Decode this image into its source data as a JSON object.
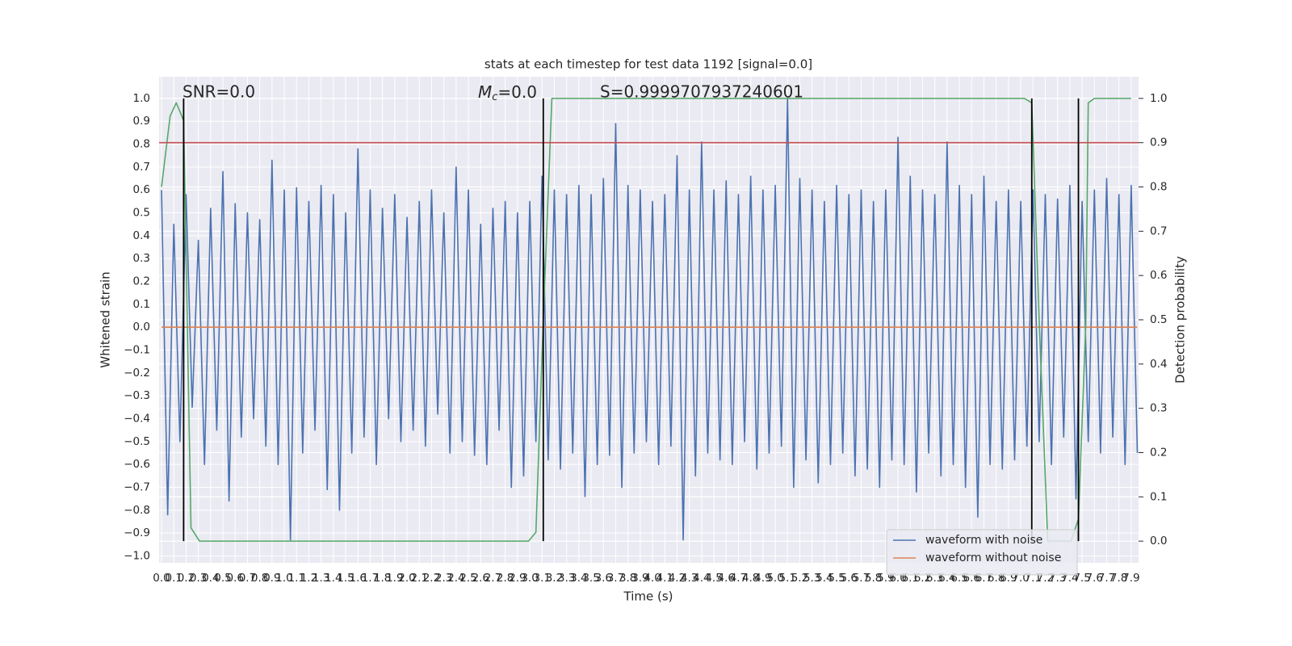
{
  "chart_data": {
    "type": "line",
    "title": "stats at each timestep for test data 1192 [signal=0.0]",
    "xlabel": "Time (s)",
    "ylabel": "Whitened strain",
    "y2label": "Detection probability",
    "annotations": {
      "snr": "SNR=0.0",
      "mc": {
        "symbol": "M",
        "subscript": "c",
        "text": "=0.0"
      },
      "s": "S=0.9999707937240601"
    },
    "background": "#eaeaf2",
    "grid": true,
    "legend": "lower right",
    "xlim": [
      -0.02,
      7.96
    ],
    "ylim": [
      -1.03,
      1.095
    ],
    "y2lim": [
      -0.049,
      1.049
    ],
    "xticks": [
      {
        "value": 0,
        "label": "0.0"
      },
      0.1,
      0.2,
      0.3,
      0.4,
      0.5,
      0.6,
      0.7,
      0.8,
      0.9,
      {
        "value": 1,
        "label": "1.0"
      },
      1.1,
      1.2,
      1.3,
      1.4,
      1.5,
      1.6,
      1.7,
      1.8,
      1.9,
      {
        "value": 2,
        "label": "2.0"
      },
      2.1,
      2.2,
      2.3,
      2.4,
      2.5,
      2.6,
      2.7,
      2.8,
      2.9,
      {
        "value": 3,
        "label": "3.0"
      },
      3.1,
      3.2,
      3.3,
      3.4,
      3.5,
      3.6,
      3.7,
      3.8,
      3.9,
      {
        "value": 4,
        "label": "4.0"
      },
      4.1,
      4.2,
      4.3,
      4.4,
      4.5,
      4.6,
      4.7,
      4.8,
      4.9,
      {
        "value": 5,
        "label": "5.0"
      },
      5.1,
      5.2,
      5.3,
      5.4,
      5.5,
      5.6,
      5.7,
      5.8,
      5.9,
      {
        "value": 6,
        "label": "6.0"
      },
      6.1,
      6.2,
      6.3,
      6.4,
      6.5,
      6.6,
      6.7,
      6.8,
      6.9,
      {
        "value": 7,
        "label": "7.0"
      },
      7.1,
      7.2,
      7.3,
      7.4,
      7.5,
      7.6,
      7.7,
      7.8,
      7.9
    ],
    "yticks": [
      {
        "value": -1,
        "label": "−1.0"
      },
      {
        "value": -0.9,
        "label": "−0.9"
      },
      {
        "value": -0.8,
        "label": "−0.8"
      },
      {
        "value": -0.7,
        "label": "−0.7"
      },
      {
        "value": -0.6,
        "label": "−0.6"
      },
      {
        "value": -0.5,
        "label": "−0.5"
      },
      {
        "value": -0.4,
        "label": "−0.4"
      },
      {
        "value": -0.3,
        "label": "−0.3"
      },
      {
        "value": -0.2,
        "label": "−0.2"
      },
      {
        "value": -0.1,
        "label": "−0.1"
      },
      {
        "value": 0,
        "label": "0.0"
      },
      0.1,
      0.2,
      0.3,
      0.4,
      0.5,
      0.6,
      0.7,
      0.8,
      0.9,
      {
        "value": 1,
        "label": "1.0"
      }
    ],
    "y2ticks": [
      {
        "value": 0,
        "label": "0.0"
      },
      0.1,
      0.2,
      0.3,
      0.4,
      0.5,
      0.6,
      0.7,
      0.8,
      0.9,
      {
        "value": 1,
        "label": "1.0"
      }
    ],
    "threshold": {
      "y2": 0.9,
      "color": "#c44e52"
    },
    "vlines": {
      "x": [
        0.18,
        3.11,
        7.09,
        7.47
      ],
      "y2": [
        0,
        1
      ],
      "color": "#000000"
    },
    "series": [
      {
        "name": "waveform with noise",
        "color": "#4c72b0",
        "x": [
          0,
          0.05,
          0.1,
          0.15,
          0.2,
          0.25,
          0.3,
          0.35,
          0.4,
          0.45,
          0.5,
          0.55,
          0.6,
          0.65,
          0.7,
          0.75,
          0.8,
          0.85,
          0.9,
          0.95,
          1,
          1.05,
          1.1,
          1.15,
          1.2,
          1.25,
          1.3,
          1.35,
          1.4,
          1.45,
          1.5,
          1.55,
          1.6,
          1.65,
          1.7,
          1.75,
          1.8,
          1.85,
          1.9,
          1.95,
          2,
          2.05,
          2.1,
          2.15,
          2.2,
          2.25,
          2.3,
          2.35,
          2.4,
          2.45,
          2.5,
          2.55,
          2.6,
          2.65,
          2.7,
          2.75,
          2.8,
          2.85,
          2.9,
          2.95,
          3,
          3.05,
          3.1,
          3.15,
          3.2,
          3.25,
          3.3,
          3.35,
          3.4,
          3.45,
          3.5,
          3.55,
          3.6,
          3.65,
          3.7,
          3.75,
          3.8,
          3.85,
          3.9,
          3.95,
          4,
          4.05,
          4.1,
          4.15,
          4.2,
          4.25,
          4.3,
          4.35,
          4.4,
          4.45,
          4.5,
          4.55,
          4.6,
          4.65,
          4.7,
          4.75,
          4.8,
          4.85,
          4.9,
          4.95,
          5,
          5.05,
          5.1,
          5.15,
          5.2,
          5.25,
          5.3,
          5.35,
          5.4,
          5.45,
          5.5,
          5.55,
          5.6,
          5.65,
          5.7,
          5.75,
          5.8,
          5.85,
          5.9,
          5.95,
          6,
          6.05,
          6.1,
          6.15,
          6.2,
          6.25,
          6.3,
          6.35,
          6.4,
          6.45,
          6.5,
          6.55,
          6.6,
          6.65,
          6.7,
          6.75,
          6.8,
          6.85,
          6.9,
          6.95,
          7,
          7.05,
          7.1,
          7.15,
          7.2,
          7.25,
          7.3,
          7.35,
          7.4,
          7.45,
          7.5,
          7.55,
          7.6,
          7.65,
          7.7,
          7.75,
          7.8,
          7.85,
          7.9,
          7.95
        ],
        "values": [
          0.6,
          -0.82,
          0.45,
          -0.5,
          0.58,
          -0.35,
          0.38,
          -0.6,
          0.52,
          -0.45,
          0.68,
          -0.76,
          0.54,
          -0.48,
          0.5,
          -0.4,
          0.47,
          -0.52,
          0.73,
          -0.6,
          0.6,
          -0.93,
          0.61,
          -0.55,
          0.55,
          -0.45,
          0.62,
          -0.71,
          0.58,
          -0.8,
          0.5,
          -0.55,
          0.78,
          -0.48,
          0.6,
          -0.6,
          0.52,
          -0.4,
          0.58,
          -0.5,
          0.48,
          -0.45,
          0.55,
          -0.52,
          0.6,
          -0.38,
          0.5,
          -0.55,
          0.7,
          -0.5,
          0.6,
          -0.56,
          0.45,
          -0.6,
          0.52,
          -0.45,
          0.55,
          -0.7,
          0.5,
          -0.65,
          0.55,
          -0.5,
          0.66,
          -0.58,
          0.6,
          -0.62,
          0.58,
          -0.55,
          0.62,
          -0.74,
          0.58,
          -0.6,
          0.65,
          -0.56,
          0.89,
          -0.7,
          0.62,
          -0.55,
          0.6,
          -0.5,
          0.55,
          -0.6,
          0.58,
          -0.52,
          0.75,
          -0.93,
          0.6,
          -0.65,
          0.81,
          -0.55,
          0.6,
          -0.58,
          0.64,
          -0.6,
          0.58,
          -0.5,
          0.66,
          -0.62,
          0.6,
          -0.55,
          0.62,
          -0.52,
          1.0,
          -0.7,
          0.65,
          -0.58,
          0.6,
          -0.68,
          0.55,
          -0.6,
          0.62,
          -0.55,
          0.58,
          -0.65,
          0.6,
          -0.62,
          0.55,
          -0.7,
          0.6,
          -0.58,
          0.83,
          -0.6,
          0.66,
          -0.72,
          0.6,
          -0.55,
          0.58,
          -0.65,
          0.81,
          -0.6,
          0.62,
          -0.7,
          0.58,
          -0.83,
          0.66,
          -0.6,
          0.55,
          -0.62,
          0.6,
          -0.58,
          0.55,
          -0.52,
          0.6,
          -0.5,
          0.58,
          -0.6,
          0.56,
          -0.48,
          0.62,
          -0.75,
          0.55,
          -0.5,
          0.6,
          -0.55,
          0.65,
          -0.48,
          0.58,
          -0.6,
          0.62,
          -0.55
        ]
      },
      {
        "name": "waveform without noise",
        "color": "#dd8452",
        "x": [
          0,
          7.95
        ],
        "values": [
          0,
          0
        ]
      },
      {
        "color": "#55a868",
        "axis": "y2",
        "x": [
          0,
          0.07,
          0.12,
          0.18,
          0.24,
          0.31,
          2.99,
          3.05,
          3.11,
          3.18,
          7.03,
          7.09,
          7.15,
          7.22,
          7.41,
          7.47,
          7.53,
          7.55,
          7.6,
          7.9
        ],
        "values": [
          0.8,
          0.96,
          0.99,
          0.95,
          0.03,
          0,
          0,
          0.02,
          0.5,
          1,
          1,
          0.99,
          0.5,
          0,
          0,
          0.05,
          0.49,
          0.99,
          1,
          1
        ]
      }
    ]
  }
}
